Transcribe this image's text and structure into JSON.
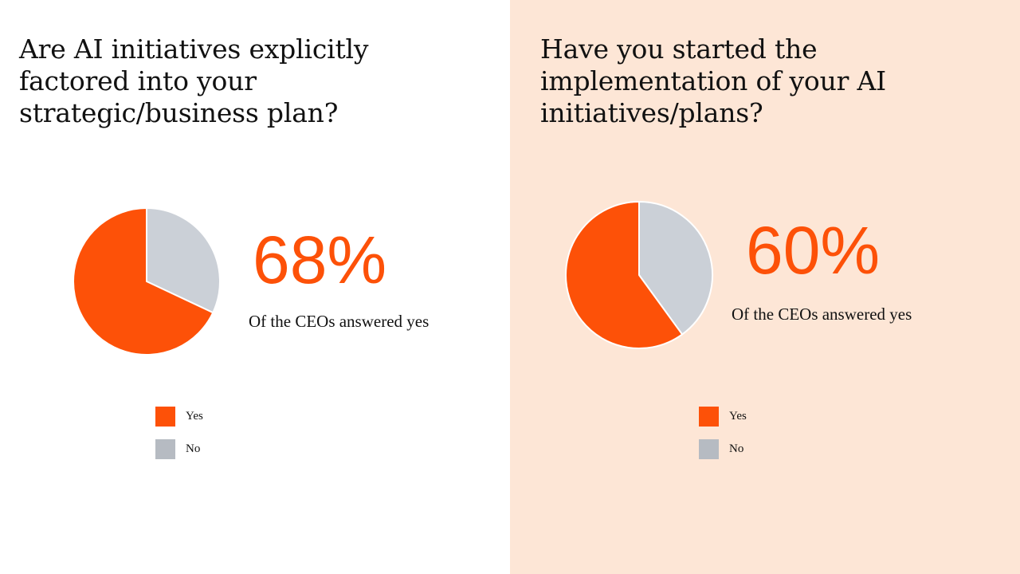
{
  "colors": {
    "yes": "#fd5108",
    "no": "#cbd0d7",
    "no_legend": "#b6bbc2",
    "right_background": "#fde6d6"
  },
  "left": {
    "question": "Are AI initiatives explicitly factored into your strategic/business plan?",
    "percent_label": "68%",
    "caption": "Of the CEOs answered yes",
    "legend": [
      {
        "label": "Yes"
      },
      {
        "label": "No"
      }
    ]
  },
  "right": {
    "question": "Have you started the implementation of your AI initiatives/plans?",
    "percent_label": "60%",
    "caption": "Of the CEOs answered yes",
    "legend": [
      {
        "label": "Yes"
      },
      {
        "label": "No"
      }
    ]
  },
  "chart_data": [
    {
      "type": "pie",
      "title": "Are AI initiatives explicitly factored into your strategic/business plan?",
      "categories": [
        "Yes",
        "No"
      ],
      "values": [
        68,
        32
      ],
      "unit": "%",
      "legend": "bottom"
    },
    {
      "type": "pie",
      "title": "Have you started the implementation of your AI initiatives/plans?",
      "categories": [
        "Yes",
        "No"
      ],
      "values": [
        60,
        40
      ],
      "unit": "%",
      "legend": "bottom"
    }
  ]
}
